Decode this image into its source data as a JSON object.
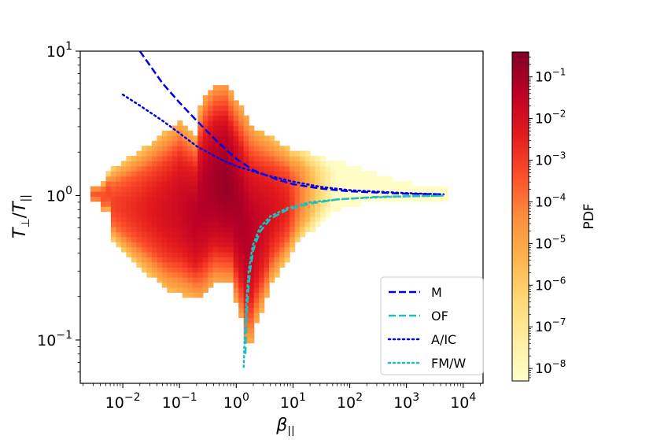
{
  "chart_data": {
    "type": "heatmap",
    "title": "",
    "xlabel": {
      "base": "β",
      "sub": "||"
    },
    "ylabel": {
      "base": "T",
      "sub1": "⊥",
      "sep": "/",
      "base2": "T",
      "sub2": "||"
    },
    "xscale": "log",
    "yscale": "log",
    "xlim_log10": [
      -2.75,
      4.35
    ],
    "ylim_log10": [
      -1.3,
      1.0
    ],
    "x_ticks": [
      {
        "base": "10",
        "exp": "−2",
        "log": -2
      },
      {
        "base": "10",
        "exp": "−1",
        "log": -1
      },
      {
        "base": "10",
        "exp": "0",
        "log": 0
      },
      {
        "base": "10",
        "exp": "1",
        "log": 1
      },
      {
        "base": "10",
        "exp": "2",
        "log": 2
      },
      {
        "base": "10",
        "exp": "3",
        "log": 3
      },
      {
        "base": "10",
        "exp": "4",
        "log": 4
      }
    ],
    "y_ticks": [
      {
        "base": "10",
        "exp": "1",
        "log": 1
      },
      {
        "base": "10",
        "exp": "0",
        "log": 0
      },
      {
        "base": "10",
        "exp": "−1",
        "log": -1
      }
    ],
    "colorbar": {
      "label": "PDF",
      "scale": "log",
      "range_log10": [
        -8.3,
        -0.4
      ],
      "ticks": [
        {
          "base": "10",
          "exp": "−1",
          "log": -1
        },
        {
          "base": "10",
          "exp": "−2",
          "log": -2
        },
        {
          "base": "10",
          "exp": "−3",
          "log": -3
        },
        {
          "base": "10",
          "exp": "−4",
          "log": -4
        },
        {
          "base": "10",
          "exp": "−5",
          "log": -5
        },
        {
          "base": "10",
          "exp": "−6",
          "log": -6
        },
        {
          "base": "10",
          "exp": "−7",
          "log": -7
        },
        {
          "base": "10",
          "exp": "−8",
          "log": -8
        }
      ],
      "colors": [
        "#ffffcc",
        "#ffeda0",
        "#fed976",
        "#feb24c",
        "#fd8d3c",
        "#fc4e2a",
        "#e31a1c",
        "#bd0026",
        "#800026"
      ]
    },
    "series": [
      {
        "name": "M",
        "color": "#0000ee",
        "style": "dashed",
        "points": [
          [
            0.02,
            10.0
          ],
          [
            0.05,
            6.0
          ],
          [
            0.1,
            4.4
          ],
          [
            0.2,
            3.3
          ],
          [
            0.5,
            2.3
          ],
          [
            1,
            1.8
          ],
          [
            2,
            1.5
          ],
          [
            5,
            1.3
          ],
          [
            10,
            1.2
          ],
          [
            30,
            1.12
          ],
          [
            100,
            1.07
          ],
          [
            1000,
            1.03
          ],
          [
            4500,
            1.02
          ]
        ]
      },
      {
        "name": "OF",
        "color": "#1fbfbf",
        "style": "dashed",
        "points": [
          [
            1.45,
            0.08
          ],
          [
            1.5,
            0.12
          ],
          [
            1.6,
            0.2
          ],
          [
            1.75,
            0.3
          ],
          [
            2.0,
            0.42
          ],
          [
            2.6,
            0.56
          ],
          [
            4,
            0.69
          ],
          [
            8,
            0.8
          ],
          [
            20,
            0.88
          ],
          [
            60,
            0.94
          ],
          [
            300,
            0.98
          ],
          [
            4500,
            1.0
          ]
        ]
      },
      {
        "name": "A/IC",
        "color": "#0000ee",
        "style": "dotted",
        "points": [
          [
            0.01,
            5.0
          ],
          [
            0.02,
            4.2
          ],
          [
            0.05,
            3.3
          ],
          [
            0.1,
            2.7
          ],
          [
            0.2,
            2.2
          ],
          [
            0.5,
            1.8
          ],
          [
            1,
            1.6
          ],
          [
            3,
            1.4
          ],
          [
            10,
            1.25
          ],
          [
            30,
            1.15
          ],
          [
            100,
            1.09
          ],
          [
            1000,
            1.04
          ],
          [
            4500,
            1.02
          ]
        ]
      },
      {
        "name": "FM/W",
        "color": "#1fbfbf",
        "style": "dotted",
        "points": [
          [
            1.35,
            0.065
          ],
          [
            1.4,
            0.1
          ],
          [
            1.5,
            0.18
          ],
          [
            1.65,
            0.3
          ],
          [
            1.95,
            0.45
          ],
          [
            2.6,
            0.6
          ],
          [
            4,
            0.72
          ],
          [
            8,
            0.82
          ],
          [
            20,
            0.9
          ],
          [
            80,
            0.95
          ],
          [
            500,
            0.98
          ],
          [
            4500,
            1.0
          ]
        ]
      }
    ]
  }
}
